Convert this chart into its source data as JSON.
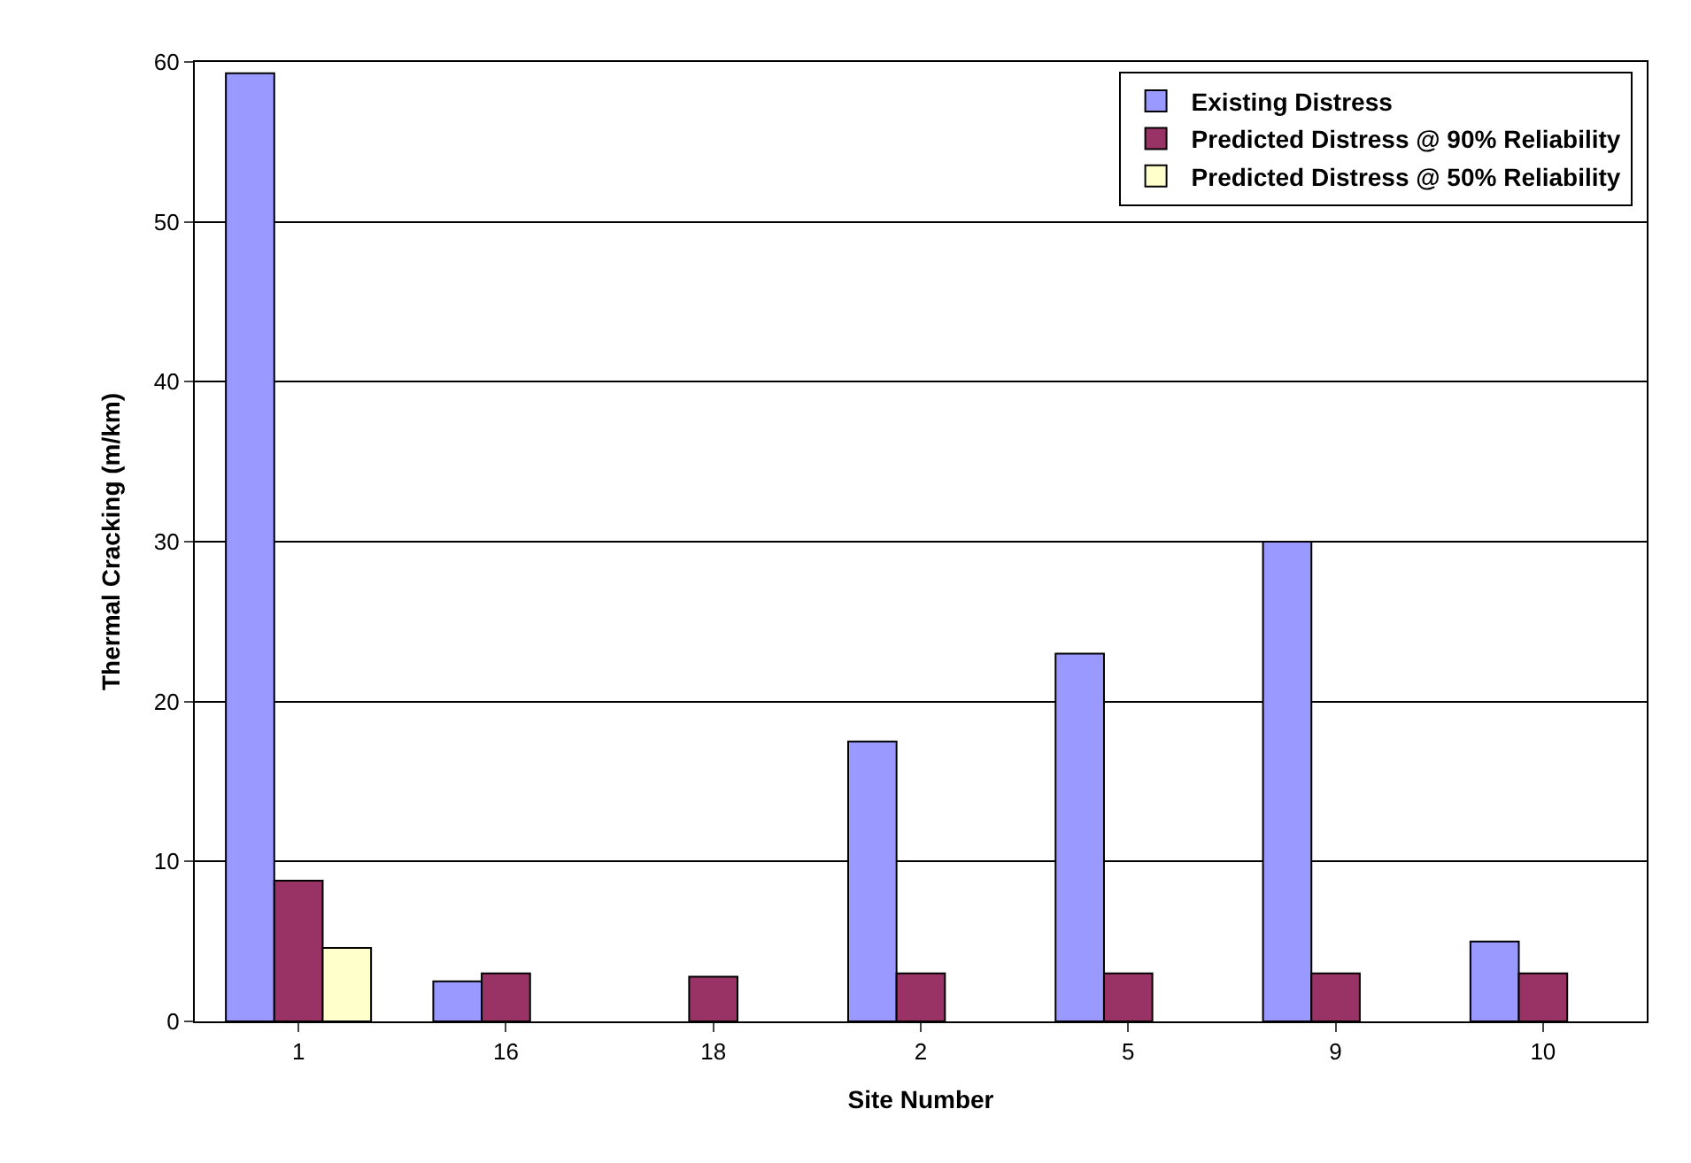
{
  "chart_data": {
    "type": "bar",
    "xlabel": "Site Number",
    "ylabel": "Thermal Cracking (m/km)",
    "categories": [
      "1",
      "16",
      "18",
      "2",
      "5",
      "9",
      "10"
    ],
    "series": [
      {
        "name": "Existing Distress",
        "color": "#9999ff",
        "values": [
          59.3,
          2.5,
          0,
          17.5,
          23,
          30,
          5
        ]
      },
      {
        "name": "Predicted Distress @ 90% Reliability",
        "color": "#993366",
        "values": [
          8.8,
          3,
          2.8,
          3,
          3,
          3,
          3
        ]
      },
      {
        "name": "Predicted Distress @ 50% Reliability",
        "color": "#ffffcc",
        "values": [
          4.6,
          0,
          0,
          0,
          0,
          0,
          0
        ]
      }
    ],
    "ylim": [
      0,
      60
    ],
    "yticks": [
      0,
      10,
      20,
      30,
      40,
      50,
      60
    ],
    "grid": "y",
    "legend": "top right"
  }
}
